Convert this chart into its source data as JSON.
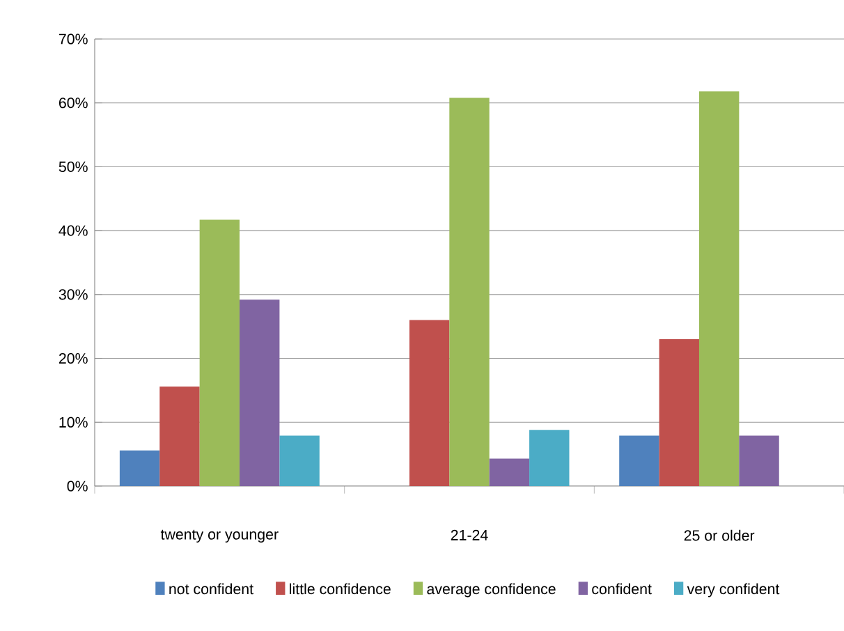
{
  "chart_data": {
    "type": "bar",
    "categories": [
      "twenty or younger",
      "21-24",
      "25 or older"
    ],
    "series": [
      {
        "name": "not confident",
        "color": "#4f81bd",
        "values": [
          5.6,
          null,
          7.9
        ]
      },
      {
        "name": "little  confidence",
        "color": "#c0504d",
        "values": [
          15.6,
          26.0,
          23.0
        ]
      },
      {
        "name": "average confidence",
        "color": "#9bbb59",
        "values": [
          41.7,
          60.8,
          61.8
        ]
      },
      {
        "name": "confident",
        "color": "#8064a2",
        "values": [
          29.2,
          4.3,
          7.9
        ]
      },
      {
        "name": "very confident",
        "color": "#4bacc6",
        "values": [
          7.9,
          8.8,
          null
        ]
      }
    ],
    "ylim": [
      0,
      70
    ],
    "yticks": [
      {
        "value": 0,
        "label": "0%"
      },
      {
        "value": 10,
        "label": "10%"
      },
      {
        "value": 20,
        "label": "20%"
      },
      {
        "value": 30,
        "label": "30%"
      },
      {
        "value": 40,
        "label": "40%"
      },
      {
        "value": 50,
        "label": "50%"
      },
      {
        "value": 60,
        "label": "60%"
      },
      {
        "value": 70,
        "label": "70%"
      }
    ],
    "grid": "y",
    "legend": "bottom"
  }
}
